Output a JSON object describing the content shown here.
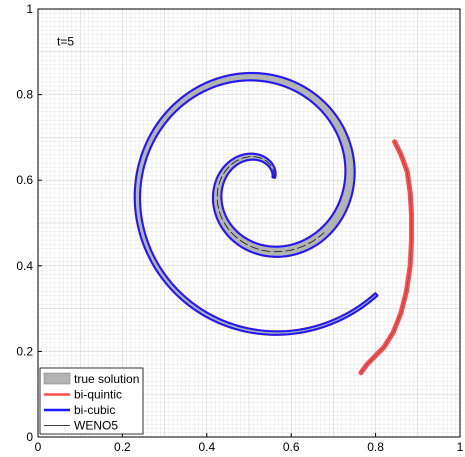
{
  "chart_data": {
    "type": "line",
    "annotation": "t=5",
    "xlim": [
      0,
      1
    ],
    "ylim": [
      0,
      1
    ],
    "xticks": [
      "0",
      "0.2",
      "0.4",
      "0.6",
      "0.8",
      "1"
    ],
    "yticks": [
      "0",
      "0.2",
      "0.4",
      "0.6",
      "0.8",
      "1"
    ],
    "x_tick_values": [
      0,
      0.2,
      0.4,
      0.6,
      0.8,
      1
    ],
    "y_tick_values": [
      0,
      0.2,
      0.4,
      0.6,
      0.8,
      1
    ],
    "grid": true,
    "grid_step": 0.01,
    "legend_position": "bottom-left",
    "legend": [
      {
        "label": "true solution",
        "color": "#b3b3b3",
        "style": "patch"
      },
      {
        "label": "bi-quintic",
        "color": "#ff4d4d",
        "style": "line"
      },
      {
        "label": "bi-cubic",
        "color": "#1a1aff",
        "style": "line"
      },
      {
        "label": "WENO5",
        "color": "#000000",
        "style": "thin-line"
      }
    ],
    "series": [
      {
        "name": "true solution",
        "color": "#b3b3b3",
        "description": "thin grey band following the spiral arm from the centre (about 0.53, 0.60) outwards"
      },
      {
        "name": "bi-quintic",
        "color": "#ff4d4d",
        "tail_x": [
          0.845,
          0.86,
          0.875,
          0.882,
          0.885,
          0.885,
          0.882,
          0.873,
          0.86,
          0.842,
          0.82,
          0.8,
          0.78,
          0.765
        ],
        "tail_y": [
          0.69,
          0.66,
          0.62,
          0.57,
          0.52,
          0.46,
          0.4,
          0.34,
          0.29,
          0.245,
          0.21,
          0.19,
          0.17,
          0.15
        ]
      },
      {
        "name": "bi-cubic",
        "color": "#1a1aff",
        "description": "outline of the spiral band; ends near (0.85, 0.69)"
      },
      {
        "name": "WENO5",
        "color": "#000000",
        "description": "thin black outline, broken into short segments on the inner arm"
      }
    ]
  }
}
